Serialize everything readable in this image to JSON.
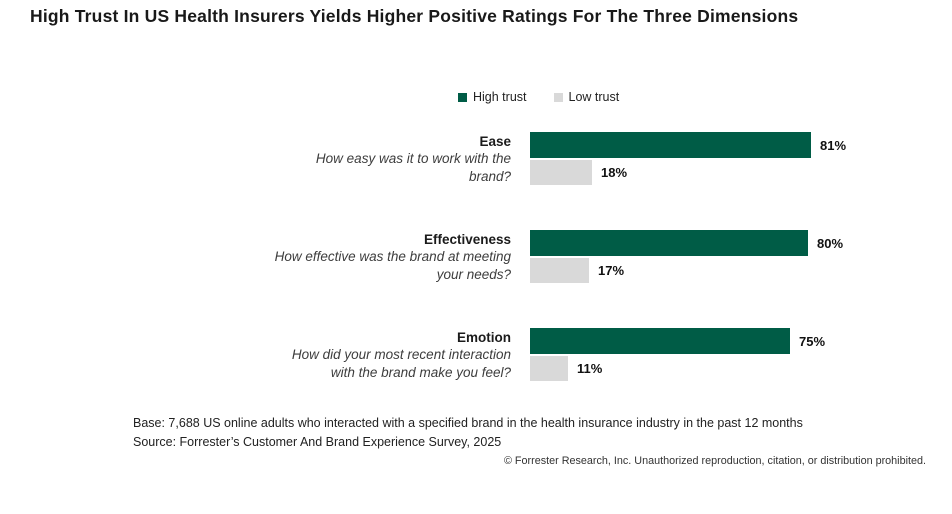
{
  "title": "High Trust In US Health Insurers Yields Higher Positive Ratings For The Three Dimensions",
  "chart_data": {
    "type": "bar",
    "orientation": "horizontal",
    "title": "High Trust In US Health Insurers Yields Higher Positive Ratings For The Three Dimensions",
    "categories": [
      "Ease",
      "Effectiveness",
      "Emotion"
    ],
    "category_questions": [
      "How easy was it to work with the brand?",
      "How effective was the brand at meeting your needs?",
      "How did your most recent interaction with the brand make you feel?"
    ],
    "series": [
      {
        "name": "High trust",
        "color": "#005c46",
        "values": [
          81,
          80,
          75
        ]
      },
      {
        "name": "Low trust",
        "color": "#d9d9d9",
        "values": [
          18,
          17,
          11
        ]
      }
    ],
    "value_suffix": "%",
    "xlim": [
      0,
      100
    ],
    "legend_position": "top-center",
    "grid": false,
    "data_labels": true
  },
  "footnotes": {
    "base": "Base: 7,688 US online adults who interacted with a specified brand in the health insurance industry in the past 12 months",
    "source": "Source: Forrester’s Customer And Brand Experience Survey, 2025"
  },
  "copyright": "© Forrester Research, Inc. Unauthorized reproduction, citation, or distribution prohibited."
}
